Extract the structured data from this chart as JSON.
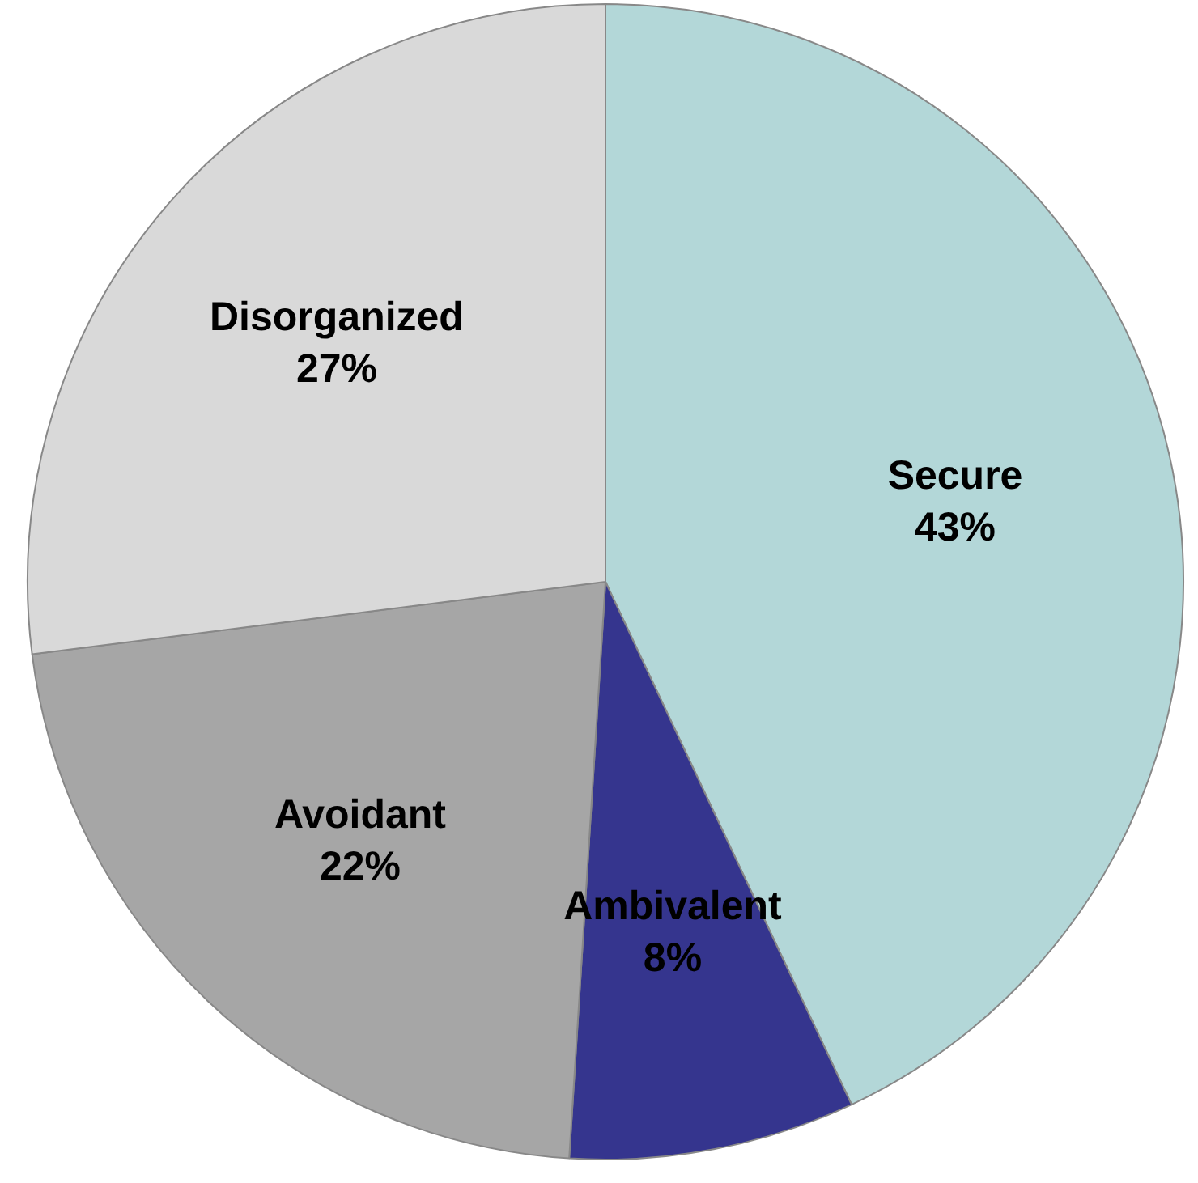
{
  "chart_data": {
    "type": "pie",
    "categories": [
      "Secure",
      "Ambivalent",
      "Avoidant",
      "Disorganized"
    ],
    "values": [
      43,
      8,
      22,
      27
    ],
    "value_labels": [
      "43%",
      "8%",
      "22%",
      "27%"
    ],
    "colors": [
      "#b3d7d8",
      "#35358e",
      "#a6a6a6",
      "#d9d9d9"
    ],
    "legend": false
  }
}
